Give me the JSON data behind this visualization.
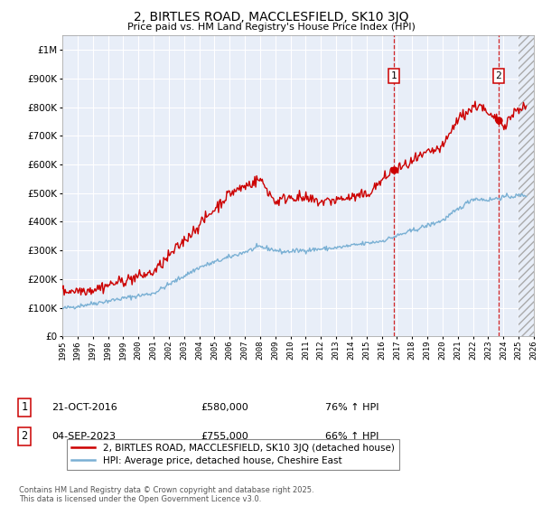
{
  "title": "2, BIRTLES ROAD, MACCLESFIELD, SK10 3JQ",
  "subtitle": "Price paid vs. HM Land Registry's House Price Index (HPI)",
  "ylim": [
    0,
    1050000
  ],
  "yticks": [
    0,
    100000,
    200000,
    300000,
    400000,
    500000,
    600000,
    700000,
    800000,
    900000,
    1000000
  ],
  "ytick_labels": [
    "£0",
    "£100K",
    "£200K",
    "£300K",
    "£400K",
    "£500K",
    "£600K",
    "£700K",
    "£800K",
    "£900K",
    "£1M"
  ],
  "x_start_year": 1995,
  "x_end_year": 2026,
  "red_line_color": "#cc0000",
  "blue_line_color": "#7ab0d4",
  "bg_color": "#e8eef8",
  "grid_color": "#ffffff",
  "sale1_date": "21-OCT-2016",
  "sale1_price": 580000,
  "sale1_hpi_pct": "76%",
  "sale2_date": "04-SEP-2023",
  "sale2_price": 755000,
  "sale2_hpi_pct": "66%",
  "sale1_x": 2016.8,
  "sale2_x": 2023.67,
  "legend_label_red": "2, BIRTLES ROAD, MACCLESFIELD, SK10 3JQ (detached house)",
  "legend_label_blue": "HPI: Average price, detached house, Cheshire East",
  "footer": "Contains HM Land Registry data © Crown copyright and database right 2025.\nThis data is licensed under the Open Government Licence v3.0."
}
